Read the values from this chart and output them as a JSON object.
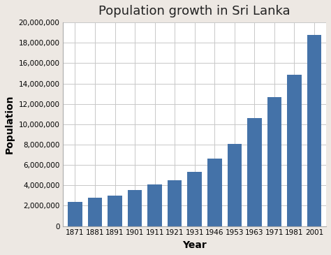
{
  "title": "Population growth in Sri Lanka",
  "xlabel": "Year",
  "ylabel": "Population",
  "categories": [
    "1871",
    "1881",
    "1891",
    "1901",
    "1911",
    "1921",
    "1931",
    "1946",
    "1953",
    "1963",
    "1971",
    "1981",
    "2001"
  ],
  "values": [
    2400000,
    2760000,
    3000000,
    3560000,
    4106000,
    4498000,
    5312000,
    6657000,
    8098000,
    10582000,
    12689000,
    14847000,
    18797000
  ],
  "bar_color": "#4472a8",
  "ylim": [
    0,
    20000000
  ],
  "ytick_step": 2000000,
  "background_color": "#ede8e3",
  "plot_background": "#ffffff",
  "grid_color": "#c8c8c8",
  "title_fontsize": 13,
  "axis_label_fontsize": 10,
  "tick_fontsize": 7.5
}
